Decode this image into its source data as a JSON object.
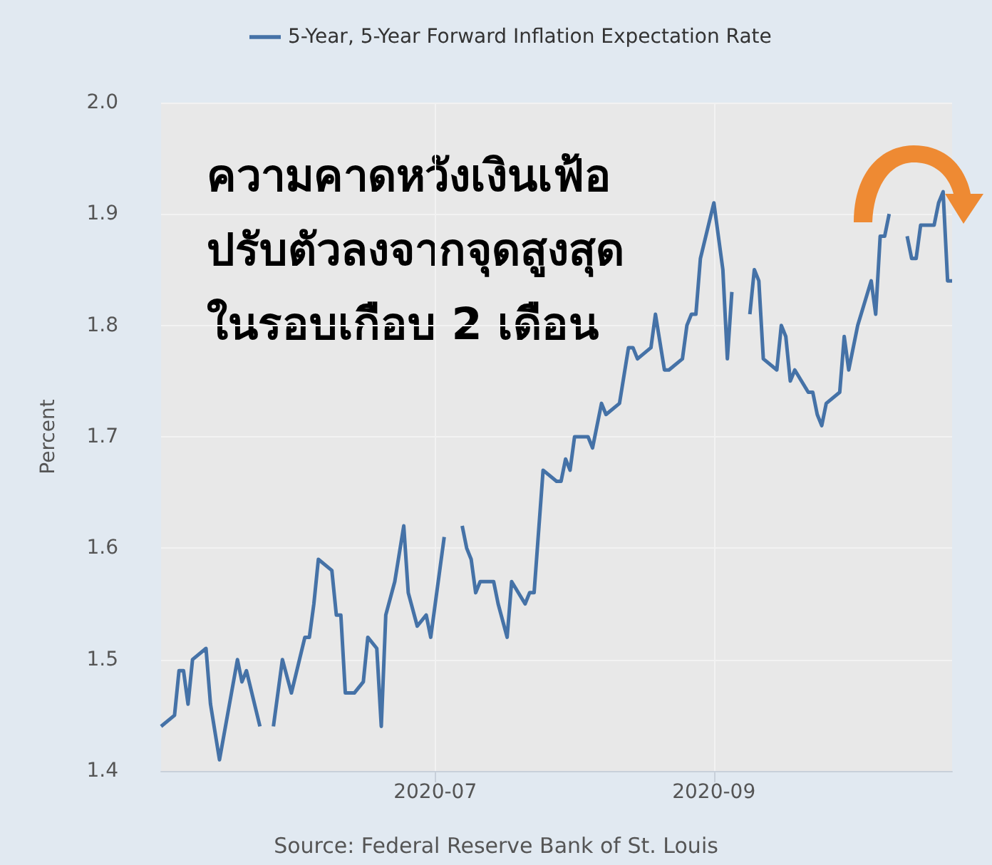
{
  "chart_data": {
    "type": "line",
    "ylabel": "Percent",
    "legend": "top",
    "grid": true,
    "xlim": [
      "2020-05-01",
      "2020-10-24"
    ],
    "xticks": [
      "2020-07",
      "2020-09"
    ],
    "ylim": [
      1.4,
      2.0
    ],
    "yticks": [
      1.4,
      1.5,
      1.6,
      1.7,
      1.8,
      1.9,
      {
        "value": 2.0,
        "label": "2.0"
      }
    ],
    "annotations": [
      "ความคาดหวังเงินเฟ้อ\nปรับตัวลงจากจุดสูงสุด\nในรอบเกือบ 2 เดือน",
      "Source: Federal Reserve Bank of St. Louis"
    ],
    "series": [
      {
        "name": "5-Year, 5-Year Forward Inflation Expectation Rate",
        "color": "#4572a7",
        "x": [
          "2020-05-01",
          "2020-05-04",
          "2020-05-05",
          "2020-05-06",
          "2020-05-07",
          "2020-05-08",
          "2020-05-11",
          "2020-05-12",
          "2020-05-14",
          "2020-05-18",
          "2020-05-19",
          "2020-05-20",
          "2020-05-23",
          "2020-05-24",
          "2020-05-26",
          "2020-05-28",
          "2020-05-30",
          "2020-06-02",
          "2020-06-03",
          "2020-06-04",
          "2020-06-05",
          "2020-06-08",
          "2020-06-09",
          "2020-06-10",
          "2020-06-11",
          "2020-06-13",
          "2020-06-15",
          "2020-06-16",
          "2020-06-18",
          "2020-06-19",
          "2020-06-20",
          "2020-06-22",
          "2020-06-24",
          "2020-06-25",
          "2020-06-27",
          "2020-06-29",
          "2020-06-30",
          "2020-07-03",
          "2020-07-04",
          "2020-07-07",
          "2020-07-08",
          "2020-07-09",
          "2020-07-10",
          "2020-07-11",
          "2020-07-14",
          "2020-07-15",
          "2020-07-17",
          "2020-07-18",
          "2020-07-21",
          "2020-07-22",
          "2020-07-23",
          "2020-07-25",
          "2020-07-28",
          "2020-07-29",
          "2020-07-30",
          "2020-07-31",
          "2020-08-01",
          "2020-08-04",
          "2020-08-05",
          "2020-08-07",
          "2020-08-08",
          "2020-08-11",
          "2020-08-13",
          "2020-08-14",
          "2020-08-15",
          "2020-08-18",
          "2020-08-19",
          "2020-08-21",
          "2020-08-22",
          "2020-08-25",
          "2020-08-26",
          "2020-08-27",
          "2020-08-28",
          "2020-08-29",
          "2020-09-01",
          "2020-09-03",
          "2020-09-04",
          "2020-09-05",
          "2020-09-06",
          "2020-09-09",
          "2020-09-10",
          "2020-09-11",
          "2020-09-12",
          "2020-09-15",
          "2020-09-16",
          "2020-09-17",
          "2020-09-18",
          "2020-09-19",
          "2020-09-22",
          "2020-09-23",
          "2020-09-24",
          "2020-09-25",
          "2020-09-26",
          "2020-09-29",
          "2020-09-30",
          "2020-10-01",
          "2020-10-03",
          "2020-10-06",
          "2020-10-07",
          "2020-10-08",
          "2020-10-09",
          "2020-10-10",
          "2020-10-11",
          "2020-10-14",
          "2020-10-15",
          "2020-10-16",
          "2020-10-17",
          "2020-10-20",
          "2020-10-21",
          "2020-10-22",
          "2020-10-23",
          "2020-10-24"
        ],
        "values": [
          1.44,
          1.45,
          1.49,
          1.49,
          1.46,
          1.5,
          1.51,
          1.46,
          1.41,
          1.5,
          1.48,
          1.49,
          1.44,
          null,
          1.44,
          1.5,
          1.47,
          1.52,
          1.52,
          1.55,
          1.59,
          1.58,
          1.54,
          1.54,
          1.47,
          1.47,
          1.48,
          1.52,
          1.51,
          1.44,
          1.54,
          1.57,
          1.62,
          1.56,
          1.53,
          1.54,
          1.52,
          1.61,
          null,
          1.62,
          1.6,
          1.59,
          1.56,
          1.57,
          1.57,
          1.55,
          1.52,
          1.57,
          1.55,
          1.56,
          1.56,
          1.67,
          1.66,
          1.66,
          1.68,
          1.67,
          1.7,
          1.7,
          1.69,
          1.73,
          1.72,
          1.73,
          1.78,
          1.78,
          1.77,
          1.78,
          1.81,
          1.76,
          1.76,
          1.77,
          1.8,
          1.81,
          1.81,
          1.86,
          1.91,
          1.85,
          1.77,
          1.83,
          null,
          1.81,
          1.85,
          1.84,
          1.77,
          1.76,
          1.8,
          1.79,
          1.75,
          1.76,
          1.74,
          1.74,
          1.72,
          1.71,
          1.73,
          1.74,
          1.79,
          1.76,
          1.8,
          1.84,
          1.81,
          1.88,
          1.88,
          1.9,
          null,
          1.88,
          1.86,
          1.86,
          1.89,
          1.89,
          1.91,
          1.92,
          1.84,
          1.84
        ]
      }
    ]
  }
}
